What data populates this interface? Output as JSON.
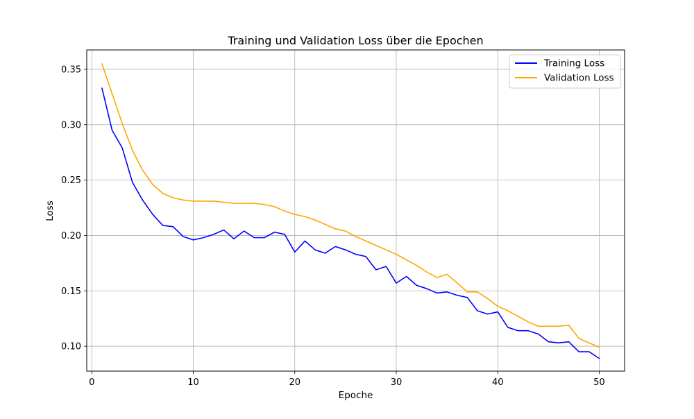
{
  "chart_data": {
    "type": "line",
    "title": "Training und Validation Loss über die Epochen",
    "xlabel": "Epoche",
    "ylabel": "Loss",
    "xlim": [
      -0.5,
      52.5
    ],
    "ylim": [
      0.0775,
      0.3675
    ],
    "xticks": [
      0,
      10,
      20,
      30,
      40,
      50
    ],
    "yticks": [
      0.1,
      0.15,
      0.2,
      0.25,
      0.3,
      0.35
    ],
    "xtick_labels": [
      "0",
      "10",
      "20",
      "30",
      "40",
      "50"
    ],
    "ytick_labels": [
      "0.10",
      "0.15",
      "0.20",
      "0.25",
      "0.30",
      "0.35"
    ],
    "grid": true,
    "legend_position": "top-right",
    "x": [
      1,
      2,
      3,
      4,
      5,
      6,
      7,
      8,
      9,
      10,
      11,
      12,
      13,
      14,
      15,
      16,
      17,
      18,
      19,
      20,
      21,
      22,
      23,
      24,
      25,
      26,
      27,
      28,
      29,
      30,
      31,
      32,
      33,
      34,
      35,
      36,
      37,
      38,
      39,
      40,
      41,
      42,
      43,
      44,
      45,
      46,
      47,
      48,
      49,
      50
    ],
    "series": [
      {
        "name": "Training Loss",
        "color": "#0000ff",
        "values": [
          0.333,
          0.295,
          0.279,
          0.248,
          0.232,
          0.219,
          0.209,
          0.208,
          0.199,
          0.196,
          0.198,
          0.201,
          0.205,
          0.197,
          0.204,
          0.198,
          0.198,
          0.203,
          0.201,
          0.185,
          0.195,
          0.187,
          0.184,
          0.19,
          0.187,
          0.183,
          0.181,
          0.169,
          0.172,
          0.157,
          0.163,
          0.155,
          0.152,
          0.148,
          0.149,
          0.146,
          0.144,
          0.132,
          0.129,
          0.131,
          0.117,
          0.114,
          0.114,
          0.111,
          0.104,
          0.103,
          0.104,
          0.095,
          0.095,
          0.089
        ]
      },
      {
        "name": "Validation Loss",
        "color": "#ffa500",
        "values": [
          0.355,
          0.328,
          0.301,
          0.277,
          0.259,
          0.246,
          0.238,
          0.234,
          0.232,
          0.231,
          0.231,
          0.231,
          0.23,
          0.229,
          0.229,
          0.229,
          0.228,
          0.226,
          0.222,
          0.219,
          0.217,
          0.214,
          0.21,
          0.206,
          0.204,
          0.199,
          0.195,
          0.191,
          0.187,
          0.183,
          0.178,
          0.173,
          0.167,
          0.162,
          0.165,
          0.157,
          0.149,
          0.149,
          0.143,
          0.136,
          0.132,
          0.127,
          0.122,
          0.118,
          0.118,
          0.118,
          0.119,
          0.107,
          0.103,
          0.099
        ]
      }
    ]
  }
}
